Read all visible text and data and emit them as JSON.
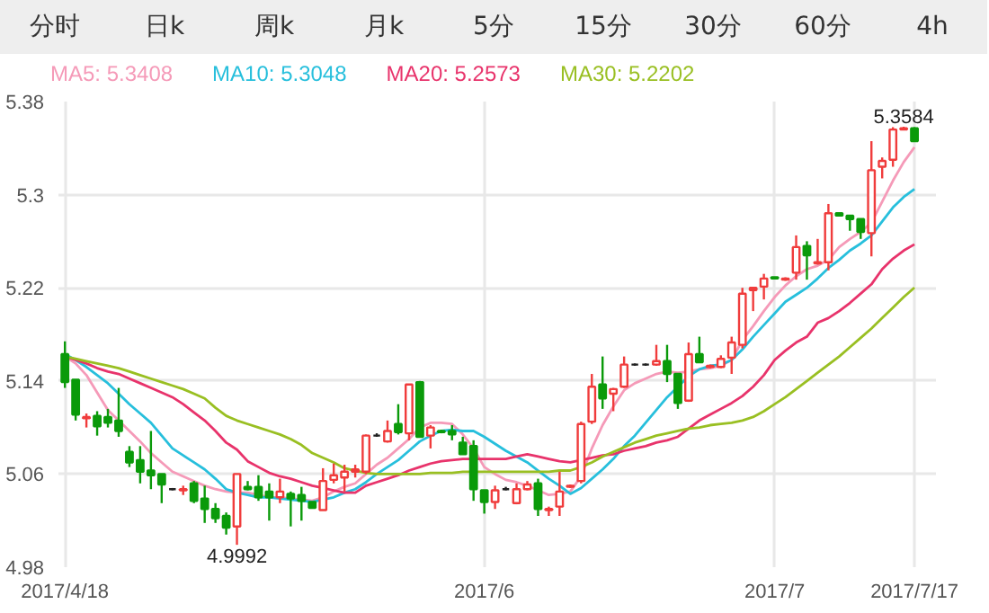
{
  "chart_data": {
    "type": "candlestick",
    "categories": [
      "2017/4/18",
      null,
      null,
      null,
      null,
      null,
      null,
      null,
      null,
      null,
      null,
      null,
      null,
      null,
      null,
      null,
      null,
      null,
      null,
      null,
      null,
      null,
      null,
      null,
      null,
      null,
      null,
      null,
      null,
      null,
      null,
      null,
      null,
      null,
      null,
      null,
      null,
      null,
      null,
      "2017/6",
      null,
      null,
      null,
      null,
      null,
      null,
      null,
      null,
      null,
      null,
      null,
      null,
      null,
      null,
      null,
      null,
      null,
      null,
      null,
      null,
      null,
      null,
      null,
      null,
      null,
      null,
      "2017/7",
      null,
      null,
      null,
      null,
      null,
      null,
      null,
      null,
      null,
      null,
      null,
      null,
      "2017/7/17"
    ],
    "ohlc": [
      [
        5.163,
        5.174,
        5.134,
        5.139
      ],
      [
        5.141,
        5.141,
        5.106,
        5.111
      ],
      [
        5.108,
        5.112,
        5.1,
        5.109
      ],
      [
        5.11,
        5.114,
        5.093,
        5.101
      ],
      [
        5.109,
        5.116,
        5.1,
        5.104
      ],
      [
        5.106,
        5.134,
        5.092,
        5.097
      ],
      [
        5.079,
        5.084,
        5.066,
        5.07
      ],
      [
        5.072,
        5.084,
        5.052,
        5.062
      ],
      [
        5.063,
        5.097,
        5.047,
        5.059
      ],
      [
        5.06,
        5.06,
        5.035,
        5.051
      ],
      [
        5.047,
        5.048,
        5.046,
        5.047
      ],
      [
        5.046,
        5.05,
        5.042,
        5.047
      ],
      [
        5.052,
        5.054,
        5.035,
        5.037
      ],
      [
        5.039,
        5.05,
        5.018,
        5.03
      ],
      [
        5.03,
        5.035,
        5.018,
        5.022
      ],
      [
        5.024,
        5.027,
        5.008,
        5.014
      ],
      [
        5.015,
        5.06,
        4.9992,
        5.06
      ],
      [
        5.049,
        5.054,
        5.046,
        5.047
      ],
      [
        5.049,
        5.059,
        5.037,
        5.04
      ],
      [
        5.045,
        5.052,
        5.02,
        5.04
      ],
      [
        5.04,
        5.056,
        5.035,
        5.045
      ],
      [
        5.043,
        5.045,
        5.015,
        5.039
      ],
      [
        5.042,
        5.049,
        5.02,
        5.037
      ],
      [
        5.036,
        5.036,
        5.031,
        5.031
      ],
      [
        5.029,
        5.065,
        5.029,
        5.054
      ],
      [
        5.055,
        5.069,
        5.052,
        5.059
      ],
      [
        5.057,
        5.068,
        5.045,
        5.062
      ],
      [
        5.062,
        5.068,
        5.057,
        5.064
      ],
      [
        5.062,
        5.094,
        5.06,
        5.093
      ],
      [
        5.093,
        5.095,
        5.092,
        5.093
      ],
      [
        5.088,
        5.106,
        5.087,
        5.097
      ],
      [
        5.103,
        5.12,
        5.094,
        5.096
      ],
      [
        5.095,
        5.137,
        5.089,
        5.137
      ],
      [
        5.139,
        5.14,
        5.092,
        5.092
      ],
      [
        5.093,
        5.102,
        5.082,
        5.1
      ],
      [
        5.097,
        5.098,
        5.095,
        5.096
      ],
      [
        5.097,
        5.102,
        5.089,
        5.094
      ],
      [
        5.087,
        5.092,
        5.077,
        5.077
      ],
      [
        5.084,
        5.089,
        5.037,
        5.047
      ],
      [
        5.046,
        5.046,
        5.026,
        5.036
      ],
      [
        5.036,
        5.05,
        5.03,
        5.046
      ],
      [
        5.047,
        5.049,
        5.046,
        5.047
      ],
      [
        5.035,
        5.052,
        5.034,
        5.047
      ],
      [
        5.047,
        5.054,
        5.046,
        5.051
      ],
      [
        5.052,
        5.056,
        5.024,
        5.03
      ],
      [
        5.029,
        5.032,
        5.024,
        5.03
      ],
      [
        5.032,
        5.062,
        5.024,
        5.045
      ],
      [
        5.049,
        5.051,
        5.048,
        5.05
      ],
      [
        5.054,
        5.105,
        5.052,
        5.103
      ],
      [
        5.105,
        5.146,
        5.103,
        5.135
      ],
      [
        5.137,
        5.161,
        5.116,
        5.125
      ],
      [
        5.129,
        5.134,
        5.114,
        5.133
      ],
      [
        5.135,
        5.161,
        5.134,
        5.154
      ],
      [
        5.154,
        5.155,
        5.153,
        5.154
      ],
      [
        5.154,
        5.155,
        5.153,
        5.154
      ],
      [
        5.154,
        5.171,
        5.153,
        5.157
      ],
      [
        5.157,
        5.171,
        5.139,
        5.146
      ],
      [
        5.146,
        5.146,
        5.116,
        5.121
      ],
      [
        5.123,
        5.173,
        5.122,
        5.163
      ],
      [
        5.163,
        5.178,
        5.156,
        5.156
      ],
      [
        5.152,
        5.154,
        5.151,
        5.153
      ],
      [
        5.152,
        5.162,
        5.151,
        5.159
      ],
      [
        5.16,
        5.178,
        5.146,
        5.173
      ],
      [
        5.171,
        5.22,
        5.168,
        5.215
      ],
      [
        5.218,
        5.22,
        5.2,
        5.22
      ],
      [
        5.221,
        5.232,
        5.21,
        5.228
      ],
      [
        5.229,
        5.229,
        5.228,
        5.228
      ],
      [
        5.227,
        5.229,
        5.226,
        5.228
      ],
      [
        5.233,
        5.265,
        5.227,
        5.255
      ],
      [
        5.256,
        5.26,
        5.227,
        5.248
      ],
      [
        5.241,
        5.262,
        5.24,
        5.242
      ],
      [
        5.242,
        5.292,
        5.235,
        5.284
      ],
      [
        5.284,
        5.284,
        5.282,
        5.282
      ],
      [
        5.282,
        5.282,
        5.269,
        5.279
      ],
      [
        5.279,
        5.279,
        5.262,
        5.268
      ],
      [
        5.267,
        5.346,
        5.247,
        5.321
      ],
      [
        5.324,
        5.332,
        5.314,
        5.329
      ],
      [
        5.33,
        5.358,
        5.324,
        5.356
      ],
      [
        5.356,
        5.3584,
        5.356,
        5.357
      ],
      [
        5.357,
        5.358,
        5.346,
        5.346
      ]
    ],
    "colors": [
      "#0a9a0a",
      "#0a9a0a",
      "#f03c3c",
      "#0a9a0a",
      "#0a9a0a",
      "#0a9a0a",
      "#0a9a0a",
      "#0a9a0a",
      "#0a9a0a",
      "#0a9a0a",
      "#222222",
      "#f03c3c",
      "#0a9a0a",
      "#0a9a0a",
      "#0a9a0a",
      "#0a9a0a",
      "#f03c3c",
      "#0a9a0a",
      "#0a9a0a",
      "#0a9a0a",
      "#f03c3c",
      "#0a9a0a",
      "#0a9a0a",
      "#0a9a0a",
      "#f03c3c",
      "#f03c3c",
      "#f03c3c",
      "#f03c3c",
      "#f03c3c",
      "#222222",
      "#f03c3c",
      "#0a9a0a",
      "#f03c3c",
      "#0a9a0a",
      "#f03c3c",
      "#0a9a0a",
      "#0a9a0a",
      "#0a9a0a",
      "#0a9a0a",
      "#0a9a0a",
      "#f03c3c",
      "#222222",
      "#f03c3c",
      "#f03c3c",
      "#0a9a0a",
      "#f03c3c",
      "#f03c3c",
      "#f03c3c",
      "#f03c3c",
      "#f03c3c",
      "#0a9a0a",
      "#f03c3c",
      "#f03c3c",
      "#222222",
      "#222222",
      "#f03c3c",
      "#0a9a0a",
      "#0a9a0a",
      "#f03c3c",
      "#0a9a0a",
      "#f03c3c",
      "#f03c3c",
      "#f03c3c",
      "#f03c3c",
      "#f03c3c",
      "#f03c3c",
      "#0a9a0a",
      "#f03c3c",
      "#f03c3c",
      "#0a9a0a",
      "#f03c3c",
      "#f03c3c",
      "#0a9a0a",
      "#0a9a0a",
      "#0a9a0a",
      "#f03c3c",
      "#f03c3c",
      "#f03c3c",
      "#f03c3c",
      "#0a9a0a"
    ],
    "series": [
      {
        "name": "MA5: 5.3408",
        "type": "line",
        "color": "#f59ab8",
        "values": [
          5.161,
          5.155,
          5.145,
          5.13,
          5.115,
          5.106,
          5.097,
          5.088,
          5.078,
          5.07,
          5.062,
          5.058,
          5.054,
          5.05,
          5.047,
          5.045,
          5.044,
          5.044,
          5.042,
          5.04,
          5.04,
          5.039,
          5.038,
          5.037,
          5.04,
          5.045,
          5.049,
          5.052,
          5.06,
          5.068,
          5.074,
          5.082,
          5.09,
          5.1,
          5.104,
          5.104,
          5.103,
          5.094,
          5.082,
          5.066,
          5.06,
          5.055,
          5.053,
          5.05,
          5.046,
          5.042,
          5.043,
          5.045,
          5.058,
          5.082,
          5.102,
          5.118,
          5.132,
          5.138,
          5.142,
          5.146,
          5.148,
          5.147,
          5.148,
          5.15,
          5.151,
          5.153,
          5.158,
          5.175,
          5.187,
          5.2,
          5.212,
          5.222,
          5.23,
          5.236,
          5.239,
          5.244,
          5.255,
          5.262,
          5.268,
          5.276,
          5.294,
          5.312,
          5.328,
          5.3408
        ]
      },
      {
        "name": "MA10: 5.3048",
        "type": "line",
        "color": "#27bfdc",
        "values": [
          5.163,
          5.158,
          5.152,
          5.145,
          5.138,
          5.129,
          5.12,
          5.112,
          5.104,
          5.093,
          5.082,
          5.076,
          5.07,
          5.064,
          5.056,
          5.047,
          5.044,
          5.042,
          5.04,
          5.04,
          5.039,
          5.038,
          5.037,
          5.036,
          5.038,
          5.04,
          5.044,
          5.047,
          5.053,
          5.06,
          5.066,
          5.072,
          5.08,
          5.088,
          5.093,
          5.097,
          5.098,
          5.097,
          5.097,
          5.092,
          5.086,
          5.08,
          5.075,
          5.07,
          5.063,
          5.056,
          5.05,
          5.043,
          5.048,
          5.056,
          5.064,
          5.073,
          5.084,
          5.093,
          5.104,
          5.115,
          5.126,
          5.135,
          5.144,
          5.15,
          5.153,
          5.154,
          5.158,
          5.167,
          5.178,
          5.188,
          5.198,
          5.208,
          5.214,
          5.22,
          5.228,
          5.237,
          5.244,
          5.252,
          5.258,
          5.265,
          5.277,
          5.289,
          5.298,
          5.3048
        ]
      },
      {
        "name": "MA20: 5.2573",
        "type": "line",
        "color": "#e8336b",
        "values": [
          5.161,
          5.158,
          5.155,
          5.151,
          5.148,
          5.146,
          5.142,
          5.138,
          5.134,
          5.13,
          5.126,
          5.12,
          5.113,
          5.106,
          5.097,
          5.087,
          5.081,
          5.071,
          5.066,
          5.061,
          5.058,
          5.056,
          5.053,
          5.05,
          5.048,
          5.046,
          5.044,
          5.044,
          5.05,
          5.053,
          5.056,
          5.059,
          5.063,
          5.066,
          5.069,
          5.071,
          5.072,
          5.073,
          5.073,
          5.073,
          5.073,
          5.073,
          5.075,
          5.077,
          5.075,
          5.073,
          5.071,
          5.07,
          5.072,
          5.074,
          5.076,
          5.077,
          5.08,
          5.082,
          5.084,
          5.087,
          5.089,
          5.092,
          5.099,
          5.106,
          5.111,
          5.116,
          5.121,
          5.127,
          5.135,
          5.145,
          5.158,
          5.166,
          5.173,
          5.178,
          5.19,
          5.194,
          5.2,
          5.207,
          5.215,
          5.223,
          5.236,
          5.245,
          5.252,
          5.2573
        ]
      },
      {
        "name": "MA30: 5.2202",
        "type": "line",
        "color": "#99bf22",
        "values": [
          5.161,
          5.159,
          5.157,
          5.155,
          5.153,
          5.151,
          5.148,
          5.145,
          5.142,
          5.139,
          5.136,
          5.133,
          5.129,
          5.125,
          5.117,
          5.11,
          5.106,
          5.103,
          5.1,
          5.097,
          5.094,
          5.09,
          5.085,
          5.078,
          5.074,
          5.07,
          5.065,
          5.063,
          5.061,
          5.06,
          5.06,
          5.06,
          5.06,
          5.06,
          5.061,
          5.061,
          5.061,
          5.062,
          5.062,
          5.062,
          5.062,
          5.062,
          5.062,
          5.062,
          5.062,
          5.062,
          5.063,
          5.063,
          5.066,
          5.07,
          5.075,
          5.079,
          5.083,
          5.087,
          5.09,
          5.093,
          5.095,
          5.097,
          5.099,
          5.1,
          5.102,
          5.103,
          5.104,
          5.106,
          5.109,
          5.114,
          5.12,
          5.126,
          5.133,
          5.14,
          5.147,
          5.154,
          5.161,
          5.169,
          5.177,
          5.185,
          5.194,
          5.203,
          5.212,
          5.2202
        ]
      }
    ],
    "ylim": [
      4.98,
      5.38
    ],
    "yticks": [
      4.98,
      5.06,
      5.14,
      5.22,
      5.3,
      5.38
    ],
    "grid": true,
    "legend": "top",
    "annotations": [
      "分时",
      "日k",
      "周k",
      "月k",
      "5分",
      "15分",
      "30分",
      "60分",
      "4h",
      {
        "text": "5.3584",
        "y": 5.3584
      },
      {
        "text": "4.9992",
        "y": 4.9992
      }
    ]
  }
}
